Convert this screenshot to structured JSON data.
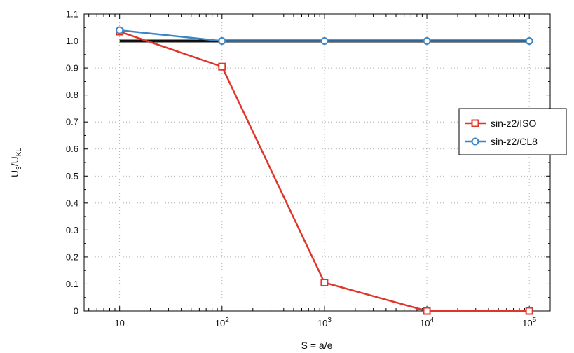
{
  "chart_data": {
    "type": "line",
    "x_scale": "log",
    "xlabel": "S = a/e",
    "ylabel": {
      "main": "U",
      "sub1": "3",
      "mid": "/U",
      "sub2": "KL"
    },
    "xlim": [
      4.5,
      160000
    ],
    "ylim": [
      0,
      1.1
    ],
    "x_ticks": [
      {
        "value": 10,
        "base": "10",
        "exp": ""
      },
      {
        "value": 100,
        "base": "10",
        "exp": "2"
      },
      {
        "value": 1000,
        "base": "10",
        "exp": "3"
      },
      {
        "value": 10000,
        "base": "10",
        "exp": "4"
      },
      {
        "value": 100000,
        "base": "10",
        "exp": "5"
      }
    ],
    "y_ticks": [
      "0",
      "0.1",
      "0.2",
      "0.3",
      "0.4",
      "0.5",
      "0.6",
      "0.7",
      "0.8",
      "0.9",
      "1.0",
      "1.1"
    ],
    "grid": true,
    "legend_position": "right",
    "reference_line": {
      "y": 1.0,
      "x": [
        10,
        100000
      ],
      "color": "#111111"
    },
    "series": [
      {
        "name": "sin-z2/ISO",
        "marker": "square",
        "color": "#e0362a",
        "x": [
          10,
          100,
          1000,
          10000,
          100000
        ],
        "y": [
          1.035,
          0.905,
          0.105,
          0.0,
          0.0
        ]
      },
      {
        "name": "sin-z2/CL8",
        "marker": "circle",
        "color": "#3d86c6",
        "x": [
          10,
          100,
          1000,
          10000,
          100000
        ],
        "y": [
          1.04,
          1.0,
          1.0,
          1.0,
          1.0
        ]
      }
    ]
  }
}
